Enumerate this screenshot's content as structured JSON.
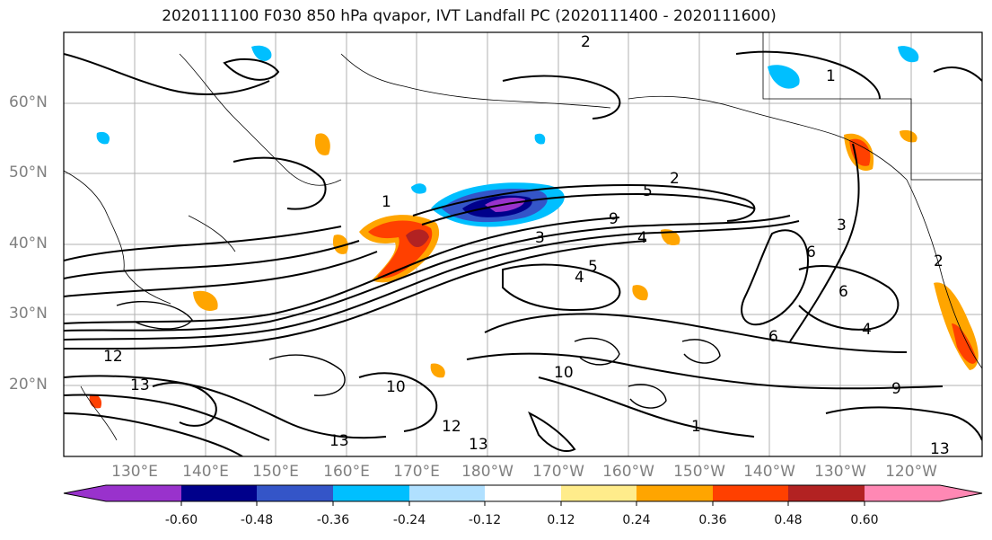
{
  "title": "2020111100 F030 850 hPa qvapor, IVT Landfall PC (2020111400 - 2020111600)",
  "latitude_labels": [
    "60°N",
    "50°N",
    "40°N",
    "30°N",
    "20°N"
  ],
  "longitude_labels": [
    "130°E",
    "140°E",
    "150°E",
    "160°E",
    "170°E",
    "180°W",
    "170°W",
    "160°W",
    "150°W",
    "140°W",
    "130°W",
    "120°W"
  ],
  "colorbar": {
    "ticks": [
      "-0.60",
      "-0.48",
      "-0.36",
      "-0.24",
      "-0.12",
      "0.12",
      "0.24",
      "0.36",
      "0.48",
      "0.60"
    ],
    "colors": [
      "#9932cc",
      "#00008b",
      "#3455c8",
      "#00bfff",
      "#b0e0ff",
      "#ffffff",
      "#ffec8b",
      "#ffa500",
      "#ff4000",
      "#b22222",
      "#ff88b4"
    ]
  },
  "contour_labels": [
    "1",
    "2",
    "3",
    "4",
    "5",
    "6",
    "9",
    "10",
    "12",
    "13"
  ],
  "map_colors": {
    "negative_anomaly": "#3455c8",
    "positive_anomaly": "#ff4000",
    "contour": "#000000",
    "gridline": "#b0b0b0"
  }
}
